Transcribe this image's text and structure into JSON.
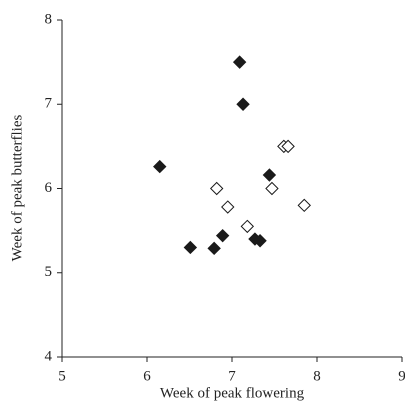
{
  "chart_data": {
    "type": "scatter",
    "xlabel": "Week of peak flowering",
    "ylabel": "Week of peak butterflies",
    "xlim": [
      5,
      9
    ],
    "xticks": [
      5,
      6,
      7,
      8,
      9
    ],
    "ylim": [
      4,
      8
    ],
    "yticks": [
      4,
      5,
      6,
      7,
      8
    ],
    "grid": false,
    "series": [
      {
        "color": "#1a1a1a",
        "filled": true,
        "x": [
          7.09,
          7.13,
          6.15,
          6.51,
          6.89,
          6.79,
          7.27,
          7.33,
          7.44
        ],
        "y": [
          7.5,
          7.0,
          6.26,
          5.3,
          5.44,
          5.29,
          5.4,
          5.38,
          6.16
        ]
      },
      {
        "color": "#1a1a1a",
        "filled": false,
        "x": [
          6.82,
          6.95,
          7.18,
          7.47,
          7.61,
          7.66,
          7.85
        ],
        "y": [
          6.0,
          5.78,
          5.55,
          6.0,
          6.5,
          6.5,
          5.8
        ]
      }
    ]
  }
}
